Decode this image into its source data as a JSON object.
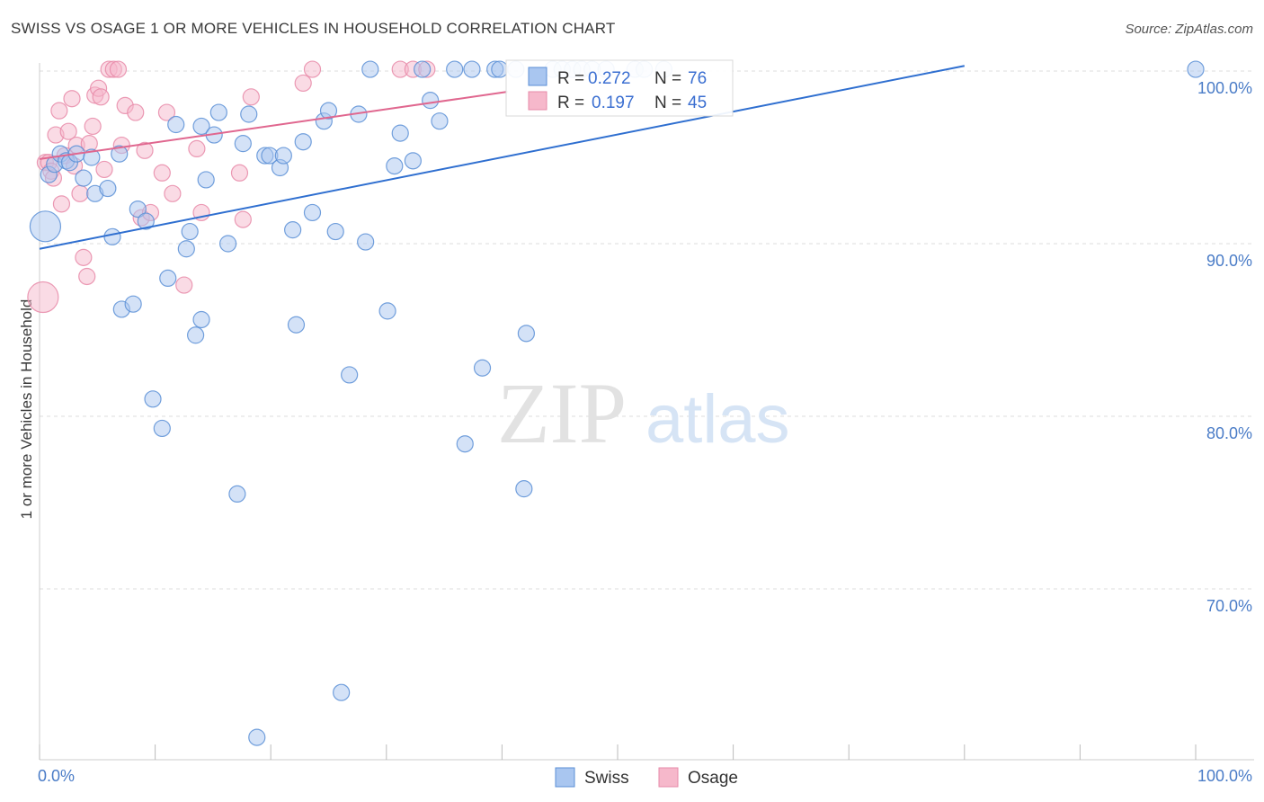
{
  "title": "SWISS VS OSAGE 1 OR MORE VEHICLES IN HOUSEHOLD CORRELATION CHART",
  "source": "Source: ZipAtlas.com",
  "watermark": {
    "zip": "ZIP",
    "atlas": "atlas"
  },
  "colors": {
    "swiss_fill": "#a9c6f0",
    "swiss_stroke": "#5b8fd6",
    "swiss_line": "#2f6fd0",
    "osage_fill": "#f6b8cb",
    "osage_stroke": "#e78aa8",
    "osage_line": "#e0678f",
    "grid": "#dddddd",
    "tick_label": "#4a7cc7"
  },
  "legend": {
    "rows": [
      {
        "r_label": "R =",
        "r_value": "0.272",
        "n_label": "N =",
        "n_value": "76"
      },
      {
        "r_label": "R =",
        "r_value": "0.197",
        "n_label": "N =",
        "n_value": "45"
      }
    ]
  },
  "bottom_legend": {
    "items": [
      "Swiss",
      "Osage"
    ]
  },
  "chart_data": {
    "type": "scatter",
    "title": "SWISS VS OSAGE 1 OR MORE VEHICLES IN HOUSEHOLD CORRELATION CHART",
    "xlabel": "",
    "ylabel": "1 or more Vehicles in Household",
    "xlim": [
      0,
      100
    ],
    "ylim": [
      60.3,
      100.3
    ],
    "x_tick_labels": [
      "0.0%",
      "100.0%"
    ],
    "y_ticks": [
      100,
      90,
      80,
      70
    ],
    "y_tick_labels": [
      "100.0%",
      "90.0%",
      "80.0%",
      "70.0%"
    ],
    "grid": true,
    "legend_position": "top-center",
    "series": [
      {
        "name": "Swiss",
        "trend": {
          "x": [
            0,
            80
          ],
          "y": [
            89.7,
            100.3
          ]
        },
        "points": [
          {
            "x": 0.5,
            "y": 91.0,
            "big": true
          },
          {
            "x": 0.8,
            "y": 94.0
          },
          {
            "x": 1.3,
            "y": 94.6
          },
          {
            "x": 1.8,
            "y": 95.2
          },
          {
            "x": 2.3,
            "y": 94.8
          },
          {
            "x": 2.6,
            "y": 94.7
          },
          {
            "x": 3.2,
            "y": 95.2
          },
          {
            "x": 3.8,
            "y": 93.8
          },
          {
            "x": 4.5,
            "y": 95.0
          },
          {
            "x": 4.8,
            "y": 92.9
          },
          {
            "x": 5.9,
            "y": 93.2
          },
          {
            "x": 6.3,
            "y": 90.4
          },
          {
            "x": 6.9,
            "y": 95.2
          },
          {
            "x": 7.1,
            "y": 86.2
          },
          {
            "x": 8.1,
            "y": 86.5
          },
          {
            "x": 8.5,
            "y": 92.0
          },
          {
            "x": 9.2,
            "y": 91.3
          },
          {
            "x": 9.8,
            "y": 81.0
          },
          {
            "x": 10.6,
            "y": 79.3
          },
          {
            "x": 11.1,
            "y": 88.0
          },
          {
            "x": 11.8,
            "y": 96.9
          },
          {
            "x": 12.7,
            "y": 89.7
          },
          {
            "x": 13.0,
            "y": 90.7
          },
          {
            "x": 13.5,
            "y": 84.7
          },
          {
            "x": 14.0,
            "y": 85.6
          },
          {
            "x": 14.4,
            "y": 93.7
          },
          {
            "x": 14.0,
            "y": 96.8
          },
          {
            "x": 15.1,
            "y": 96.3
          },
          {
            "x": 15.5,
            "y": 97.6
          },
          {
            "x": 16.3,
            "y": 90.0
          },
          {
            "x": 17.1,
            "y": 75.5
          },
          {
            "x": 17.6,
            "y": 95.8
          },
          {
            "x": 18.1,
            "y": 97.5
          },
          {
            "x": 18.8,
            "y": 61.4
          },
          {
            "x": 19.5,
            "y": 95.1
          },
          {
            "x": 19.9,
            "y": 95.1
          },
          {
            "x": 20.8,
            "y": 94.4
          },
          {
            "x": 21.1,
            "y": 95.1
          },
          {
            "x": 21.9,
            "y": 90.8
          },
          {
            "x": 22.2,
            "y": 85.3
          },
          {
            "x": 22.8,
            "y": 95.9
          },
          {
            "x": 23.6,
            "y": 91.8
          },
          {
            "x": 24.6,
            "y": 97.1
          },
          {
            "x": 25.0,
            "y": 97.7
          },
          {
            "x": 25.6,
            "y": 90.7
          },
          {
            "x": 26.1,
            "y": 64.0
          },
          {
            "x": 26.8,
            "y": 82.4
          },
          {
            "x": 27.6,
            "y": 97.5
          },
          {
            "x": 28.2,
            "y": 90.1
          },
          {
            "x": 28.6,
            "y": 100.1
          },
          {
            "x": 30.1,
            "y": 86.1
          },
          {
            "x": 30.7,
            "y": 94.5
          },
          {
            "x": 31.2,
            "y": 96.4
          },
          {
            "x": 32.3,
            "y": 94.8
          },
          {
            "x": 33.1,
            "y": 100.1
          },
          {
            "x": 33.8,
            "y": 98.3
          },
          {
            "x": 34.6,
            "y": 97.1
          },
          {
            "x": 35.9,
            "y": 100.1
          },
          {
            "x": 36.8,
            "y": 78.4
          },
          {
            "x": 37.4,
            "y": 100.1
          },
          {
            "x": 38.3,
            "y": 82.8
          },
          {
            "x": 39.4,
            "y": 100.1
          },
          {
            "x": 39.8,
            "y": 100.1
          },
          {
            "x": 41.2,
            "y": 100.1
          },
          {
            "x": 41.9,
            "y": 75.8
          },
          {
            "x": 42.1,
            "y": 84.8
          },
          {
            "x": 44.4,
            "y": 100.1
          },
          {
            "x": 45.2,
            "y": 100.1
          },
          {
            "x": 46.1,
            "y": 100.1
          },
          {
            "x": 46.9,
            "y": 100.1
          },
          {
            "x": 47.8,
            "y": 100.1
          },
          {
            "x": 49.0,
            "y": 100.1
          },
          {
            "x": 51.5,
            "y": 100.1
          },
          {
            "x": 52.3,
            "y": 100.1
          },
          {
            "x": 54.0,
            "y": 100.1
          },
          {
            "x": 100.0,
            "y": 100.1
          }
        ]
      },
      {
        "name": "Osage",
        "trend": {
          "x": [
            0,
            40.5
          ],
          "y": [
            94.9,
            98.8
          ]
        },
        "points": [
          {
            "x": 0.3,
            "y": 86.9,
            "big": true
          },
          {
            "x": 0.5,
            "y": 94.7
          },
          {
            "x": 0.8,
            "y": 94.7
          },
          {
            "x": 1.0,
            "y": 94.2
          },
          {
            "x": 1.2,
            "y": 93.8
          },
          {
            "x": 1.4,
            "y": 96.3
          },
          {
            "x": 1.7,
            "y": 97.7
          },
          {
            "x": 1.9,
            "y": 92.3
          },
          {
            "x": 2.2,
            "y": 95.1
          },
          {
            "x": 2.5,
            "y": 96.5
          },
          {
            "x": 2.8,
            "y": 98.4
          },
          {
            "x": 3.0,
            "y": 94.5
          },
          {
            "x": 3.2,
            "y": 95.7
          },
          {
            "x": 3.5,
            "y": 92.9
          },
          {
            "x": 3.8,
            "y": 89.2
          },
          {
            "x": 4.1,
            "y": 88.1
          },
          {
            "x": 4.3,
            "y": 95.8
          },
          {
            "x": 4.6,
            "y": 96.8
          },
          {
            "x": 4.8,
            "y": 98.6
          },
          {
            "x": 5.1,
            "y": 99.0
          },
          {
            "x": 5.3,
            "y": 98.5
          },
          {
            "x": 5.6,
            "y": 94.3
          },
          {
            "x": 6.0,
            "y": 100.1
          },
          {
            "x": 6.4,
            "y": 100.1
          },
          {
            "x": 6.8,
            "y": 100.1
          },
          {
            "x": 7.1,
            "y": 95.7
          },
          {
            "x": 7.4,
            "y": 98.0
          },
          {
            "x": 8.3,
            "y": 97.6
          },
          {
            "x": 8.8,
            "y": 91.5
          },
          {
            "x": 9.1,
            "y": 95.4
          },
          {
            "x": 9.6,
            "y": 91.8
          },
          {
            "x": 10.6,
            "y": 94.1
          },
          {
            "x": 11.0,
            "y": 97.6
          },
          {
            "x": 11.5,
            "y": 92.9
          },
          {
            "x": 12.5,
            "y": 87.6
          },
          {
            "x": 13.6,
            "y": 95.5
          },
          {
            "x": 14.0,
            "y": 91.8
          },
          {
            "x": 17.3,
            "y": 94.1
          },
          {
            "x": 17.6,
            "y": 91.4
          },
          {
            "x": 18.3,
            "y": 98.5
          },
          {
            "x": 22.8,
            "y": 99.3
          },
          {
            "x": 23.6,
            "y": 100.1
          },
          {
            "x": 31.2,
            "y": 100.1
          },
          {
            "x": 32.3,
            "y": 100.1
          },
          {
            "x": 33.5,
            "y": 100.1
          }
        ]
      }
    ]
  }
}
